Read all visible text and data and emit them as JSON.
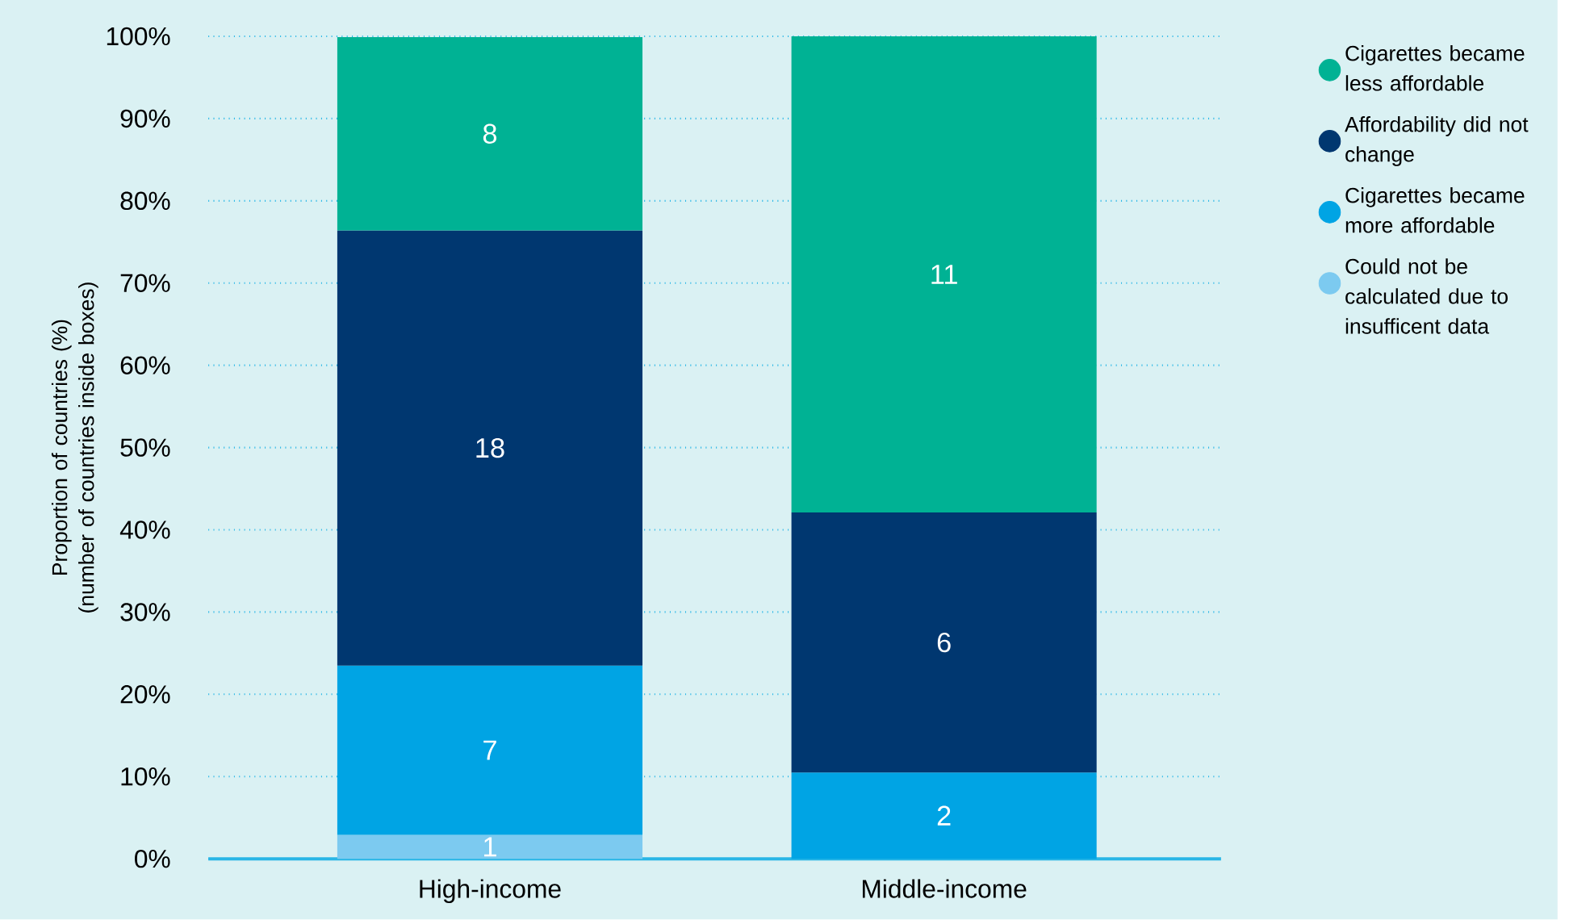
{
  "chart_data": {
    "type": "bar",
    "stacked": true,
    "ylabel": "Proportion of countries (%) (number of countries inside boxes)",
    "categories": [
      "High-income",
      "Middle-income"
    ],
    "series": [
      {
        "name": "Could not be calculated due to insufficent data",
        "color": "#7ccaf0",
        "values": [
          2.9,
          null
        ]
      },
      {
        "name": "Cigarettes became more affordable",
        "color": "#00a4e4",
        "values": [
          20.6,
          10.5
        ]
      },
      {
        "name": "Affordability did not change",
        "color": "#003770",
        "values": [
          52.9,
          31.6
        ]
      },
      {
        "name": "Cigarettes became less affordable",
        "color": "#00b294",
        "values": [
          23.5,
          57.9
        ]
      }
    ],
    "annotations": [
      "1",
      "7",
      "2",
      "18",
      "6",
      "8",
      "11"
    ],
    "ylim": [
      0,
      100
    ],
    "yticks": [
      {
        "value": 0,
        "label": "0%"
      },
      {
        "value": 10,
        "label": "10%"
      },
      {
        "value": 20,
        "label": "20%"
      },
      {
        "value": 30,
        "label": "30%"
      },
      {
        "value": 40,
        "label": "40%"
      },
      {
        "value": 50,
        "label": "50%"
      },
      {
        "value": 60,
        "label": "60%"
      },
      {
        "value": 70,
        "label": "70%"
      },
      {
        "value": 80,
        "label": "80%"
      },
      {
        "value": 90,
        "label": "90%"
      },
      {
        "value": 100,
        "label": "100%"
      }
    ],
    "grid": "y",
    "legend": "top right"
  }
}
